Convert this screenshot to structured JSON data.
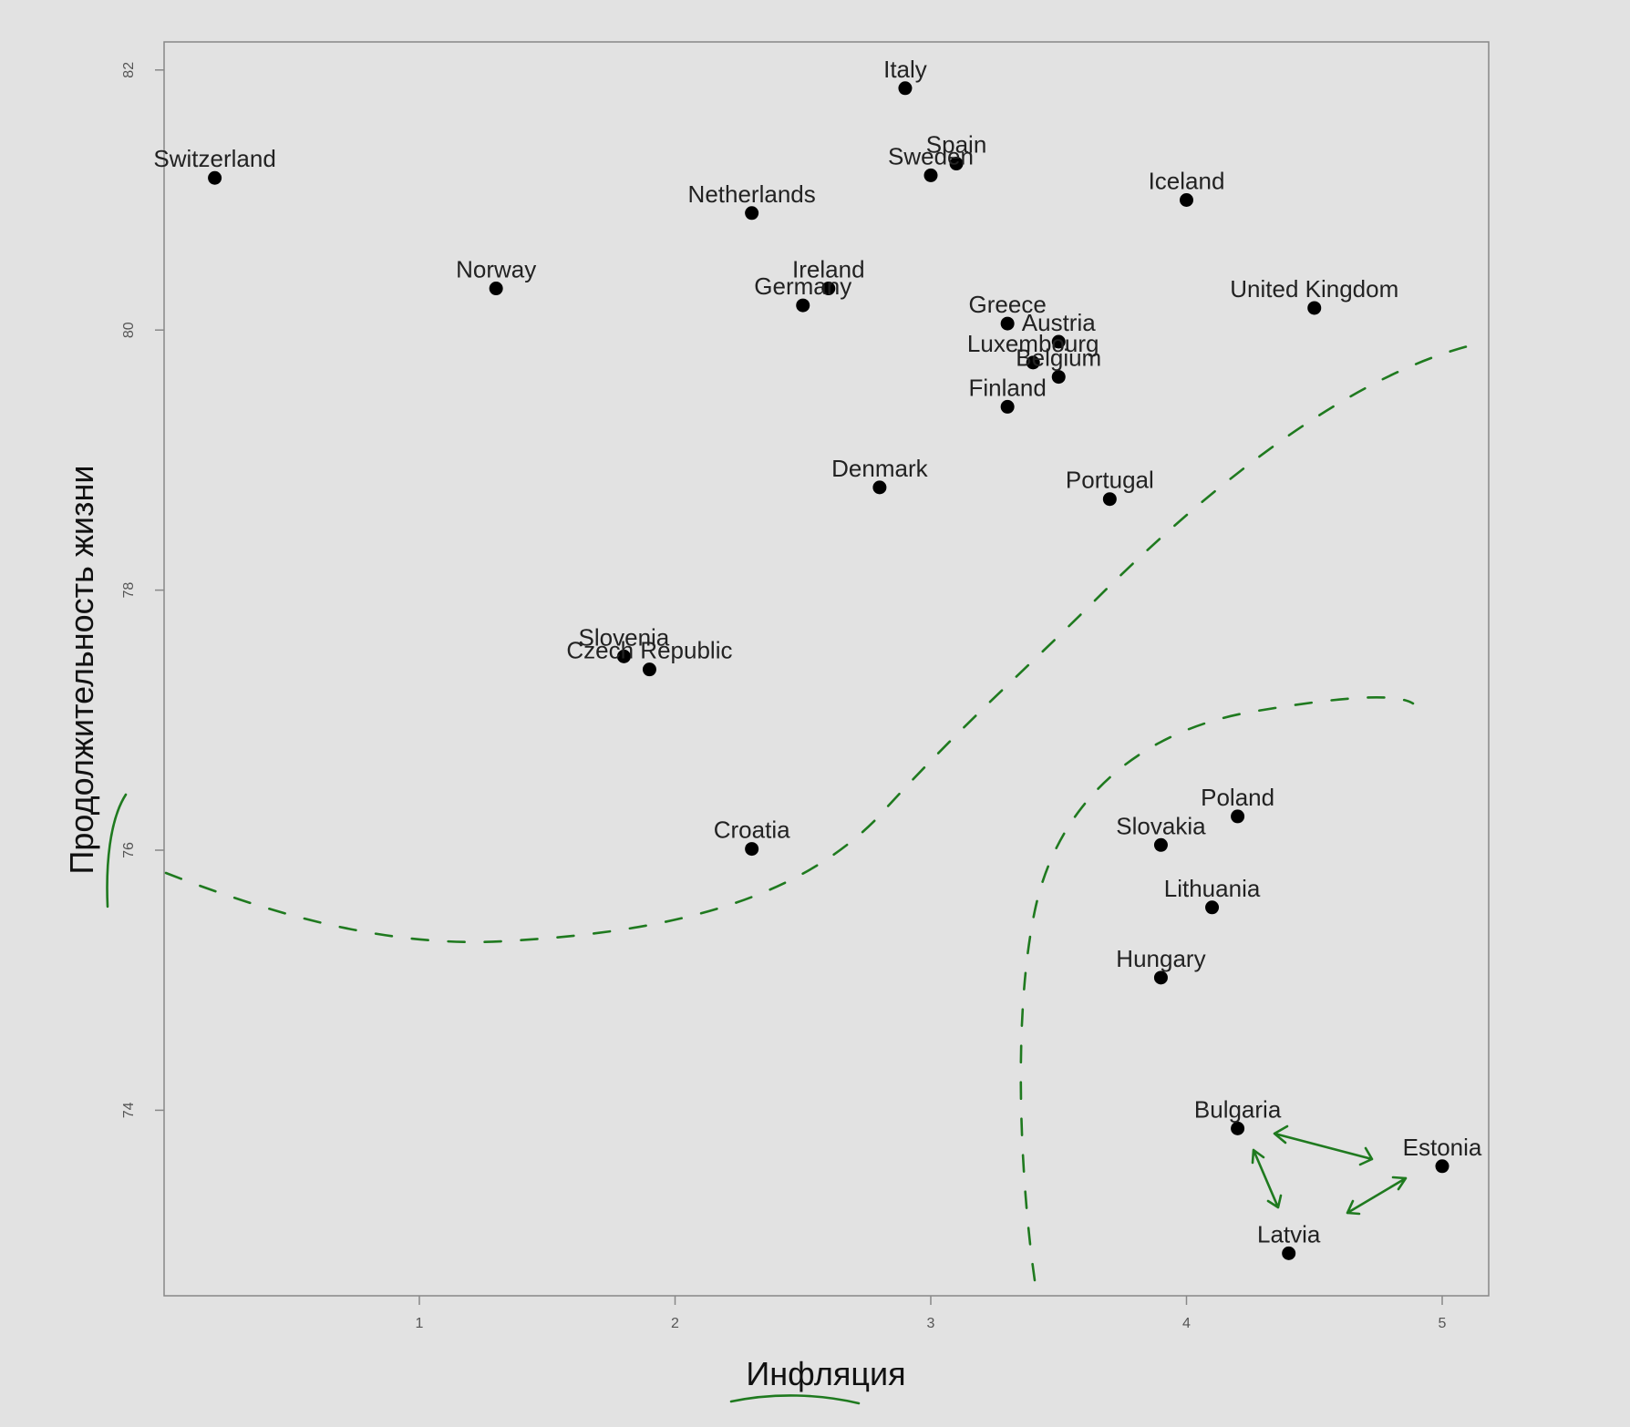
{
  "chart_data": {
    "type": "scatter",
    "title": "",
    "xlabel": "Инфляция",
    "ylabel": "Продолжительность жизни",
    "xlim": [
      0,
      5.2
    ],
    "ylim": [
      72.4,
      82.5
    ],
    "xticks": [
      "1",
      "2",
      "3",
      "4",
      "5"
    ],
    "yticks": [
      "74",
      "76",
      "78",
      "80",
      "82"
    ],
    "grid": false,
    "legend": "none",
    "point_color": "#000000",
    "annotation_color": "#1f7a1f",
    "points": [
      {
        "label": "Italy",
        "x": 2.9,
        "y": 81.86
      },
      {
        "label": "Spain",
        "x": 3.1,
        "y": 81.28
      },
      {
        "label": "Sweden",
        "x": 3.0,
        "y": 81.19
      },
      {
        "label": "Switzerland",
        "x": 0.2,
        "y": 81.17
      },
      {
        "label": "Iceland",
        "x": 4.0,
        "y": 81.0
      },
      {
        "label": "Netherlands",
        "x": 2.3,
        "y": 80.9
      },
      {
        "label": "Norway",
        "x": 1.3,
        "y": 80.32
      },
      {
        "label": "Ireland",
        "x": 2.6,
        "y": 80.32
      },
      {
        "label": "Germany",
        "x": 2.5,
        "y": 80.19
      },
      {
        "label": "United Kingdom",
        "x": 4.5,
        "y": 80.17
      },
      {
        "label": "Greece",
        "x": 3.3,
        "y": 80.05
      },
      {
        "label": "Austria",
        "x": 3.5,
        "y": 79.91
      },
      {
        "label": "Luxembourg",
        "x": 3.4,
        "y": 79.75
      },
      {
        "label": "Belgium",
        "x": 3.5,
        "y": 79.64
      },
      {
        "label": "Finland",
        "x": 3.3,
        "y": 79.41
      },
      {
        "label": "Denmark",
        "x": 2.8,
        "y": 78.79
      },
      {
        "label": "Portugal",
        "x": 3.7,
        "y": 78.7
      },
      {
        "label": "Slovenia",
        "x": 1.8,
        "y": 77.49
      },
      {
        "label": "Czech Republic",
        "x": 1.9,
        "y": 77.39
      },
      {
        "label": "Poland",
        "x": 4.2,
        "y": 76.26
      },
      {
        "label": "Slovakia",
        "x": 3.9,
        "y": 76.04
      },
      {
        "label": "Croatia",
        "x": 2.3,
        "y": 76.01
      },
      {
        "label": "Lithuania",
        "x": 4.1,
        "y": 75.56
      },
      {
        "label": "Hungary",
        "x": 3.9,
        "y": 75.02
      },
      {
        "label": "Bulgaria",
        "x": 4.2,
        "y": 73.86
      },
      {
        "label": "Estonia",
        "x": 5.0,
        "y": 73.57
      },
      {
        "label": "Latvia",
        "x": 4.4,
        "y": 72.9
      }
    ]
  }
}
